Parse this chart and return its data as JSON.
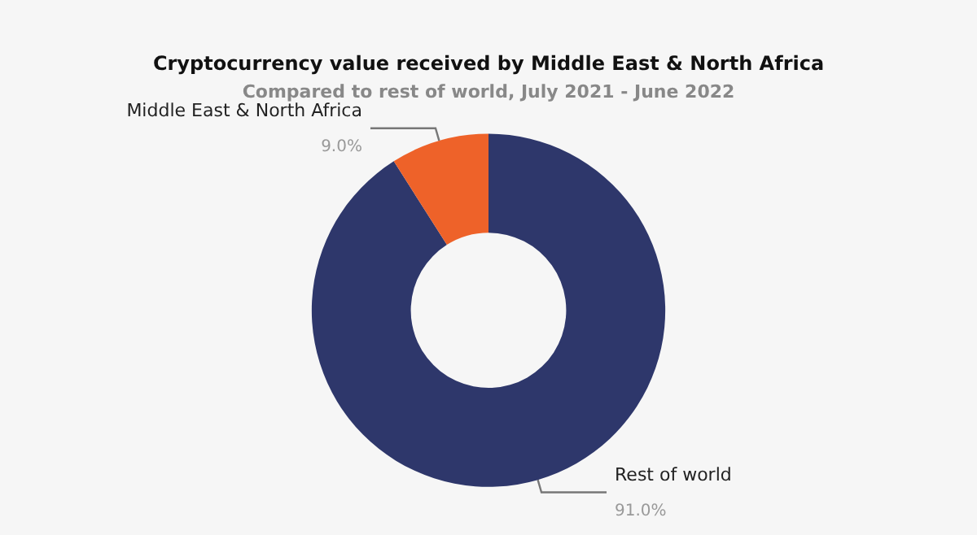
{
  "chart_data": {
    "type": "donut",
    "title": "Cryptocurrency value received by Middle East & North Africa",
    "subtitle": "Compared to rest of world, July 2021 - June 2022",
    "categories": [
      "Rest of world",
      "Middle East & North Africa"
    ],
    "values": [
      91.0,
      9.0
    ],
    "value_labels": [
      "91.0%",
      "9.0%"
    ],
    "colors": [
      "#2e376b",
      "#ee6229"
    ],
    "legend": false
  }
}
